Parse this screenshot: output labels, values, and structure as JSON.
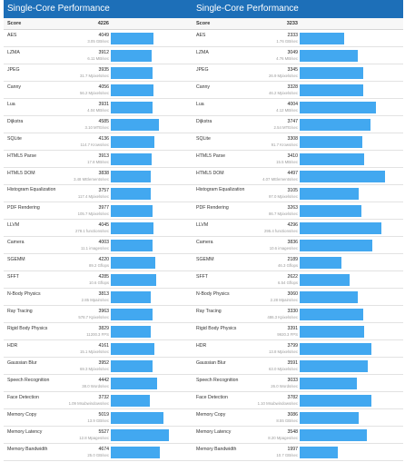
{
  "left": {
    "title": "Single-Core Performance",
    "score_label": "Score",
    "score_value": "4226",
    "max_score": 5527,
    "rows": [
      {
        "name": "AES",
        "score": "4049",
        "sub": "3.05 GB/sec",
        "value": 4049
      },
      {
        "name": "LZMA",
        "score": "3912",
        "sub": "6.11 MB/sec",
        "value": 3912
      },
      {
        "name": "JPEG",
        "score": "3935",
        "sub": "31.7 Mpixels/sec",
        "value": 3935
      },
      {
        "name": "Canny",
        "score": "4056",
        "sub": "56.2 Mpixels/sec",
        "value": 4056
      },
      {
        "name": "Lua",
        "score": "3931",
        "sub": "4.04 MB/sec",
        "value": 3931
      },
      {
        "name": "Dijkstra",
        "score": "4585",
        "sub": "3.10 MTE/sec",
        "value": 4585
      },
      {
        "name": "SQLite",
        "score": "4136",
        "sub": "114.7 Krows/sec",
        "value": 4136
      },
      {
        "name": "HTML5 Parse",
        "score": "3913",
        "sub": "17.8 MB/sec",
        "value": 3913
      },
      {
        "name": "HTML5 DOM",
        "score": "3838",
        "sub": "3.48 MElements/sec",
        "value": 3838
      },
      {
        "name": "Histogram Equalization",
        "score": "3757",
        "sub": "117.4 Mpixels/sec",
        "value": 3757
      },
      {
        "name": "PDF Rendering",
        "score": "3977",
        "sub": "105.7 Mpixels/sec",
        "value": 3977
      },
      {
        "name": "LLVM",
        "score": "4045",
        "sub": "278.1 functions/sec",
        "value": 4045
      },
      {
        "name": "Camera",
        "score": "4003",
        "sub": "11.1 images/sec",
        "value": 4003
      },
      {
        "name": "SGEMM",
        "score": "4220",
        "sub": "89.2 Gflops",
        "value": 4220
      },
      {
        "name": "SFFT",
        "score": "4285",
        "sub": "10.6 Gflops",
        "value": 4285
      },
      {
        "name": "N-Body Physics",
        "score": "3813",
        "sub": "2.85 Mpairs/sec",
        "value": 3813
      },
      {
        "name": "Ray Tracing",
        "score": "3963",
        "sub": "578.7 Kpixels/sec",
        "value": 3963
      },
      {
        "name": "Rigid Body Physics",
        "score": "3829",
        "sub": "11200.3 FPS",
        "value": 3829
      },
      {
        "name": "HDR",
        "score": "4161",
        "sub": "15.1 Mpixels/sec",
        "value": 4161
      },
      {
        "name": "Gaussian Blur",
        "score": "3952",
        "sub": "69.3 Mpixels/sec",
        "value": 3952
      },
      {
        "name": "Speech Recognition",
        "score": "4442",
        "sub": "38.0 Words/sec",
        "value": 4442
      },
      {
        "name": "Face Detection",
        "score": "3732",
        "sub": "1.09 Msubwindows/sec",
        "value": 3732
      },
      {
        "name": "Memory Copy",
        "score": "5019",
        "sub": "13.9 GB/sec",
        "value": 5019
      },
      {
        "name": "Memory Latency",
        "score": "5527",
        "sub": "12.8 Mpages/sec",
        "value": 5527
      },
      {
        "name": "Memory Bandwidth",
        "score": "4674",
        "sub": "25.0 GB/sec",
        "value": 4674
      }
    ]
  },
  "right": {
    "title": "Single-Core Performance",
    "score_label": "Score",
    "score_value": "3233",
    "max_score": 4497,
    "rows": [
      {
        "name": "AES",
        "score": "2333",
        "sub": "1.76 GB/sec",
        "value": 2333
      },
      {
        "name": "LZMA",
        "score": "3049",
        "sub": "4.76 MB/sec",
        "value": 3049
      },
      {
        "name": "JPEG",
        "score": "3345",
        "sub": "26.9 Mpixels/sec",
        "value": 3345
      },
      {
        "name": "Canny",
        "score": "3328",
        "sub": "46.2 Mpixels/sec",
        "value": 3328
      },
      {
        "name": "Lua",
        "score": "4004",
        "sub": "4.12 MB/sec",
        "value": 4004
      },
      {
        "name": "Dijkstra",
        "score": "3747",
        "sub": "2.54 MTE/sec",
        "value": 3747
      },
      {
        "name": "SQLite",
        "score": "3308",
        "sub": "91.7 Krows/sec",
        "value": 3308
      },
      {
        "name": "HTML5 Parse",
        "score": "3410",
        "sub": "15.5 MB/sec",
        "value": 3410
      },
      {
        "name": "HTML5 DOM",
        "score": "4497",
        "sub": "4.07 MElements/sec",
        "value": 4497
      },
      {
        "name": "Histogram Equalization",
        "score": "3105",
        "sub": "97.0 Mpixels/sec",
        "value": 3105
      },
      {
        "name": "PDF Rendering",
        "score": "3263",
        "sub": "86.7 Mpixels/sec",
        "value": 3263
      },
      {
        "name": "LLVM",
        "score": "4296",
        "sub": "295.4 functions/sec",
        "value": 4296
      },
      {
        "name": "Camera",
        "score": "3836",
        "sub": "10.6 images/sec",
        "value": 3836
      },
      {
        "name": "SGEMM",
        "score": "2189",
        "sub": "46.3 Gflops",
        "value": 2189
      },
      {
        "name": "SFFT",
        "score": "2622",
        "sub": "6.54 Gflops",
        "value": 2622
      },
      {
        "name": "N-Body Physics",
        "score": "3060",
        "sub": "2.28 Mpairs/sec",
        "value": 3060
      },
      {
        "name": "Ray Tracing",
        "score": "3330",
        "sub": "486.3 Kpixels/sec",
        "value": 3330
      },
      {
        "name": "Rigid Body Physics",
        "score": "3391",
        "sub": "9920.3 FPS",
        "value": 3391
      },
      {
        "name": "HDR",
        "score": "3799",
        "sub": "13.8 Mpixels/sec",
        "value": 3799
      },
      {
        "name": "Gaussian Blur",
        "score": "3591",
        "sub": "63.0 Mpixels/sec",
        "value": 3591
      },
      {
        "name": "Speech Recognition",
        "score": "3033",
        "sub": "26.0 Words/sec",
        "value": 3033
      },
      {
        "name": "Face Detection",
        "score": "3782",
        "sub": "1.10 Msubwindows/sec",
        "value": 3782
      },
      {
        "name": "Memory Copy",
        "score": "3086",
        "sub": "8.55 GB/sec",
        "value": 3086
      },
      {
        "name": "Memory Latency",
        "score": "3548",
        "sub": "8.20 Mpages/sec",
        "value": 3548
      },
      {
        "name": "Memory Bandwidth",
        "score": "1997",
        "sub": "10.7 GB/sec",
        "value": 1997
      }
    ]
  },
  "colors": {
    "header_bg": "#1d6fb8",
    "bar": "#42a8f0"
  }
}
